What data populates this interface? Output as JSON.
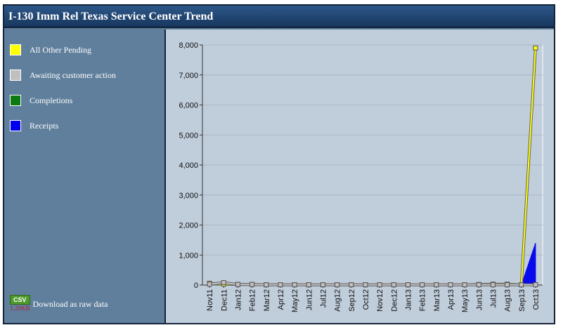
{
  "title": "I-130 Imm Rel Texas Service Center Trend",
  "legend": [
    {
      "label": "All Other Pending",
      "color": "#ffff00"
    },
    {
      "label": "Awaiting customer action",
      "color": "#c0c0c0"
    },
    {
      "label": "Completions",
      "color": "#0b7a10"
    },
    {
      "label": "Receipts",
      "color": "#0000ee"
    }
  ],
  "download": {
    "badge": "CSV",
    "size": "1.20KB",
    "label": "Download as raw data"
  },
  "chart_data": {
    "type": "line",
    "categories": [
      "Nov11",
      "Dec11",
      "Jan12",
      "Feb12",
      "Mar12",
      "Apr12",
      "May12",
      "Jun12",
      "Jul12",
      "Aug12",
      "Sep12",
      "Oct12",
      "Nov12",
      "Dec12",
      "Jan13",
      "Feb13",
      "Mar13",
      "Apr13",
      "May13",
      "Jun13",
      "Jul13",
      "Aug13",
      "Sep13",
      "Oct13"
    ],
    "series": [
      {
        "name": "Receipts",
        "render": "area",
        "color": "#0000ee",
        "values": [
          0,
          0,
          0,
          0,
          0,
          0,
          0,
          0,
          0,
          0,
          0,
          0,
          0,
          0,
          0,
          0,
          0,
          0,
          0,
          0,
          0,
          0,
          0,
          1400
        ]
      },
      {
        "name": "Completions",
        "render": "area",
        "color": "#0b7a10",
        "values": [
          20,
          0,
          0,
          0,
          0,
          0,
          0,
          0,
          0,
          0,
          0,
          0,
          0,
          0,
          0,
          0,
          0,
          0,
          0,
          0,
          0,
          0,
          0,
          0
        ]
      },
      {
        "name": "All Other Pending",
        "render": "line",
        "color": "#ffff00",
        "values": [
          60,
          30,
          20,
          20,
          10,
          10,
          10,
          10,
          10,
          10,
          10,
          10,
          10,
          10,
          10,
          10,
          10,
          10,
          10,
          20,
          30,
          30,
          10,
          7900
        ]
      },
      {
        "name": "Awaiting customer action",
        "render": "line",
        "color": "#c0c0c0",
        "values": [
          30,
          80,
          20,
          20,
          10,
          10,
          10,
          10,
          10,
          10,
          10,
          10,
          10,
          10,
          10,
          10,
          10,
          10,
          10,
          10,
          10,
          10,
          10,
          10
        ]
      }
    ],
    "ylim": [
      0,
      8000
    ],
    "yticks": [
      0,
      1000,
      2000,
      3000,
      4000,
      5000,
      6000,
      7000,
      8000
    ],
    "ytick_labels": [
      "0",
      "1,000",
      "2,000",
      "3,000",
      "4,000",
      "5,000",
      "6,000",
      "7,000",
      "8,000"
    ],
    "grid": true,
    "legend_position": "left"
  }
}
